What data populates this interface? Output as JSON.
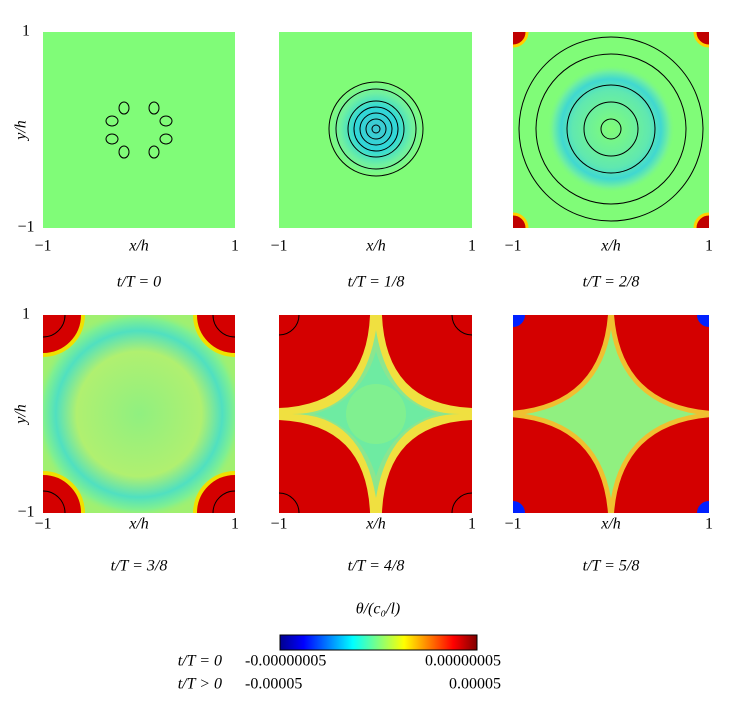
{
  "panels": [
    {
      "caption": "t/T = 0",
      "x_label": "x/h",
      "y_label": "y/h",
      "x_ticks": [
        "−1",
        "1"
      ],
      "y_ticks": [
        "1",
        "−1"
      ]
    },
    {
      "caption": "t/T = 1/8",
      "x_label": "x/h",
      "x_ticks": [
        "−1",
        "1"
      ]
    },
    {
      "caption": "t/T = 2/8",
      "x_label": "x/h",
      "x_ticks": [
        "−1",
        "1"
      ]
    },
    {
      "caption": "t/T = 3/8",
      "x_label": "x/h",
      "y_label": "y/h",
      "x_ticks": [
        "−1",
        "1"
      ],
      "y_ticks": [
        "1",
        "−1"
      ]
    },
    {
      "caption": "t/T = 4/8",
      "x_label": "x/h",
      "x_ticks": [
        "−1",
        "1"
      ]
    },
    {
      "caption": "t/T = 5/8",
      "x_label": "x/h",
      "x_ticks": [
        "−1",
        "1"
      ]
    }
  ],
  "colorbar": {
    "title": "θ/(c₀/l)",
    "rows": [
      {
        "label": "t/T = 0",
        "min": "-0.00000005",
        "max": "0.00000005"
      },
      {
        "label": "t/T > 0",
        "min": "-0.00005",
        "max": "0.00005"
      }
    ]
  }
}
